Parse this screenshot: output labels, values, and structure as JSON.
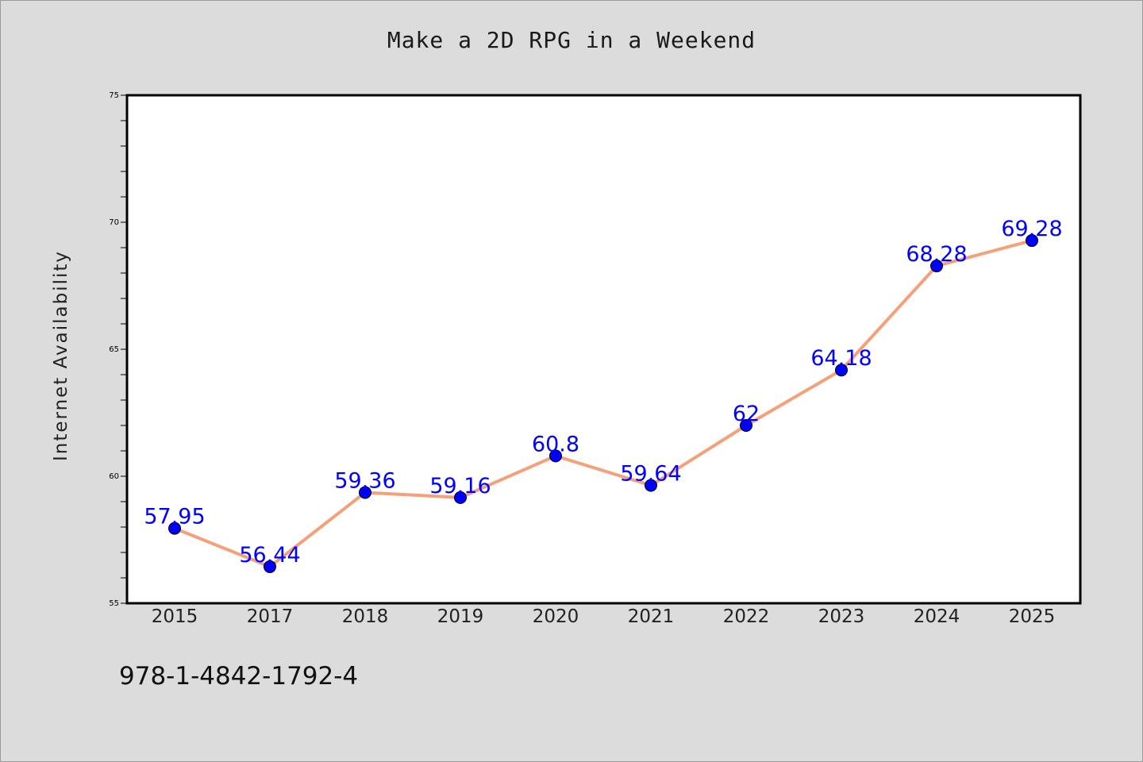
{
  "chart_data": {
    "type": "line",
    "title": "Make a 2D RPG in a Weekend",
    "xlabel": "",
    "ylabel": "Internet Availability",
    "categories": [
      "2015",
      "2017",
      "2018",
      "2019",
      "2020",
      "2021",
      "2022",
      "2023",
      "2024",
      "2025"
    ],
    "series": [
      {
        "values": [
          57.95,
          56.44,
          59.36,
          59.16,
          60.8,
          59.64,
          62,
          64.18,
          68.28,
          69.28
        ],
        "data_labels": [
          "57.95",
          "56.44",
          "59.36",
          "59.16",
          "60.8",
          "59.64",
          "62",
          "64.18",
          "68.28",
          "69.28"
        ],
        "line_color": "#f4a07a",
        "marker_color": "#0000ff",
        "label_color": "#0000ff"
      }
    ],
    "ylim": [
      55,
      75
    ],
    "yticks": [
      "55",
      "60",
      "65",
      "70",
      "75"
    ],
    "grid": false,
    "legend": "none"
  },
  "footer": {
    "isbn": "978-1-4842-1792-4"
  }
}
